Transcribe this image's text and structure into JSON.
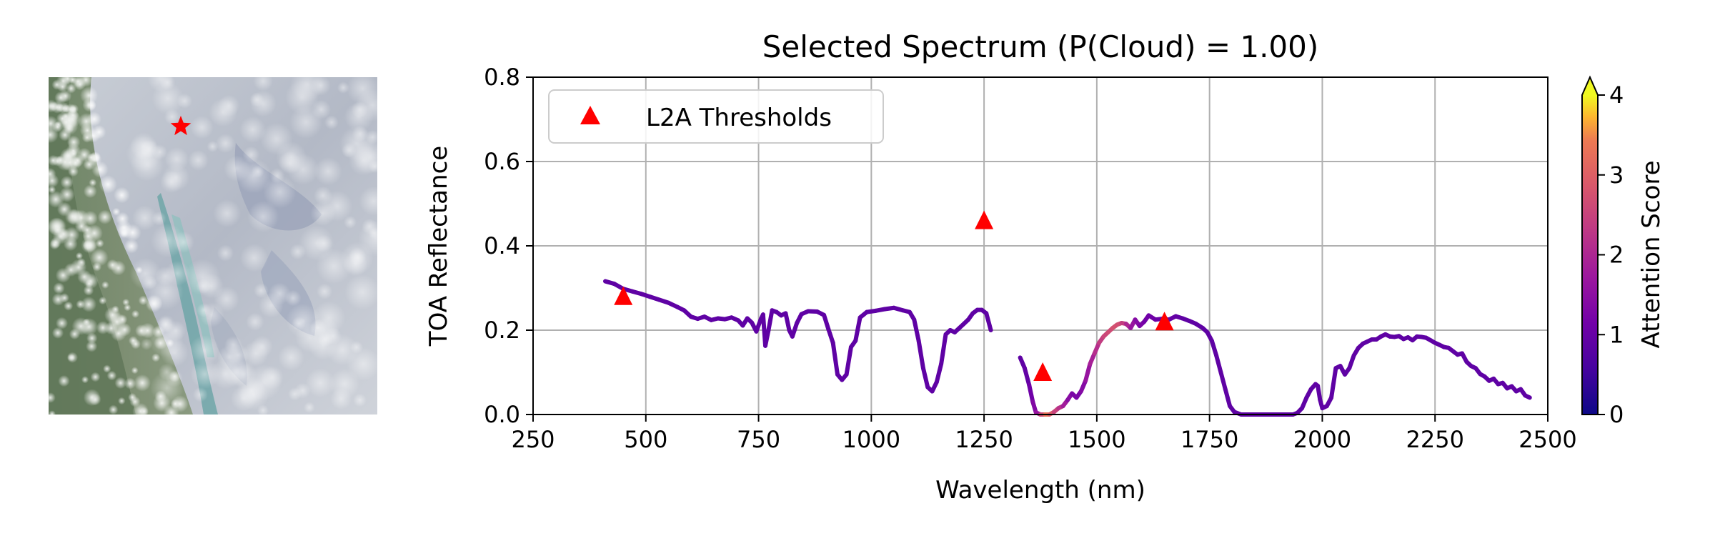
{
  "figure": {
    "thumbnail": {
      "marker": "red-star-marker",
      "marker_color": "#ff0000"
    }
  },
  "chart_data": {
    "type": "line",
    "title": "Selected Spectrum (P(Cloud) = 1.00)",
    "xlabel": "Wavelength (nm)",
    "ylabel": "TOA Reflectance",
    "xlim": [
      250,
      2500
    ],
    "ylim": [
      0,
      0.8
    ],
    "xticks": [
      250,
      500,
      750,
      1000,
      1250,
      1500,
      1750,
      2000,
      2250,
      2500
    ],
    "yticks": [
      0.0,
      0.2,
      0.4,
      0.6,
      0.8
    ],
    "xtick_labels": [
      "250",
      "500",
      "750",
      "1000",
      "1250",
      "1500",
      "1750",
      "2000",
      "2250",
      "2500"
    ],
    "ytick_labels": [
      "0.0",
      "0.2",
      "0.4",
      "0.6",
      "0.8"
    ],
    "grid": true,
    "legend": {
      "position": "top-left",
      "entries": [
        "L2A Thresholds"
      ]
    },
    "colorbar": {
      "label": "Attention Score",
      "range": [
        0,
        4
      ],
      "ticks": [
        "0",
        "1",
        "2",
        "3",
        "4"
      ],
      "extend": "max",
      "colormap": "plasma"
    },
    "series": [
      {
        "kind": "spectrum",
        "segments": [
          [
            [
              410,
              0.316,
              0.9
            ],
            [
              430,
              0.31,
              0.9
            ],
            [
              450,
              0.298,
              0.9
            ],
            [
              470,
              0.292,
              0.9
            ],
            [
              490,
              0.286,
              0.9
            ],
            [
              510,
              0.279,
              0.9
            ],
            [
              530,
              0.272,
              0.9
            ],
            [
              550,
              0.265,
              0.9
            ],
            [
              570,
              0.255,
              0.9
            ],
            [
              585,
              0.247,
              0.9
            ],
            [
              600,
              0.232,
              0.9
            ],
            [
              615,
              0.227,
              0.9
            ],
            [
              630,
              0.232,
              0.9
            ],
            [
              645,
              0.224,
              0.9
            ],
            [
              660,
              0.228,
              0.9
            ],
            [
              675,
              0.226,
              0.9
            ],
            [
              690,
              0.23,
              0.9
            ],
            [
              705,
              0.223,
              0.9
            ],
            [
              715,
              0.211,
              0.9
            ],
            [
              725,
              0.228,
              0.9
            ],
            [
              735,
              0.218,
              0.9
            ],
            [
              745,
              0.197,
              0.9
            ],
            [
              755,
              0.226,
              0.9
            ],
            [
              760,
              0.237,
              0.9
            ],
            [
              765,
              0.163,
              0.9
            ],
            [
              772,
              0.2,
              0.9
            ],
            [
              780,
              0.247,
              0.9
            ],
            [
              790,
              0.243,
              0.9
            ],
            [
              800,
              0.235,
              0.9
            ],
            [
              810,
              0.24,
              0.9
            ],
            [
              818,
              0.2,
              0.9
            ],
            [
              825,
              0.185,
              0.9
            ],
            [
              835,
              0.217,
              0.9
            ],
            [
              845,
              0.238,
              0.9
            ],
            [
              860,
              0.245,
              0.9
            ],
            [
              880,
              0.244,
              0.9
            ],
            [
              895,
              0.236,
              0.9
            ],
            [
              905,
              0.202,
              0.9
            ],
            [
              915,
              0.17,
              0.9
            ],
            [
              925,
              0.095,
              0.9
            ],
            [
              935,
              0.082,
              0.9
            ],
            [
              945,
              0.095,
              0.9
            ],
            [
              955,
              0.16,
              0.9
            ],
            [
              965,
              0.175,
              0.9
            ],
            [
              975,
              0.23,
              0.9
            ],
            [
              990,
              0.243,
              0.9
            ],
            [
              1010,
              0.246,
              0.9
            ],
            [
              1030,
              0.25,
              0.9
            ],
            [
              1050,
              0.253,
              0.9
            ],
            [
              1070,
              0.247,
              0.9
            ],
            [
              1085,
              0.243,
              0.9
            ],
            [
              1095,
              0.225,
              0.9
            ],
            [
              1105,
              0.175,
              0.9
            ],
            [
              1115,
              0.11,
              0.9
            ],
            [
              1125,
              0.065,
              0.9
            ],
            [
              1135,
              0.055,
              0.9
            ],
            [
              1145,
              0.077,
              0.9
            ],
            [
              1155,
              0.12,
              0.9
            ],
            [
              1165,
              0.19,
              0.9
            ],
            [
              1175,
              0.2,
              0.9
            ],
            [
              1185,
              0.195,
              0.9
            ],
            [
              1195,
              0.205,
              0.9
            ],
            [
              1205,
              0.215,
              0.9
            ],
            [
              1215,
              0.225,
              0.9
            ],
            [
              1225,
              0.24,
              0.9
            ],
            [
              1235,
              0.248,
              0.9
            ],
            [
              1245,
              0.248,
              0.9
            ],
            [
              1255,
              0.24,
              0.9
            ],
            [
              1265,
              0.2,
              0.9
            ]
          ],
          [
            [
              1330,
              0.135,
              0.9
            ],
            [
              1340,
              0.11,
              0.9
            ],
            [
              1350,
              0.07,
              1.0
            ],
            [
              1358,
              0.03,
              1.2
            ],
            [
              1365,
              0.005,
              1.5
            ],
            [
              1375,
              0.0,
              1.8
            ],
            [
              1385,
              0.0,
              3.5
            ],
            [
              1395,
              0.0,
              3.2
            ],
            [
              1405,
              0.006,
              2.6
            ],
            [
              1415,
              0.015,
              2.4
            ],
            [
              1425,
              0.02,
              2.0
            ],
            [
              1435,
              0.034,
              1.6
            ],
            [
              1445,
              0.05,
              1.3
            ],
            [
              1455,
              0.04,
              1.2
            ],
            [
              1465,
              0.055,
              1.3
            ],
            [
              1475,
              0.08,
              1.5
            ],
            [
              1485,
              0.12,
              1.8
            ],
            [
              1495,
              0.145,
              2.0
            ],
            [
              1505,
              0.17,
              2.3
            ],
            [
              1515,
              0.185,
              2.5
            ],
            [
              1525,
              0.195,
              2.6
            ],
            [
              1535,
              0.205,
              2.7
            ],
            [
              1545,
              0.213,
              2.8
            ],
            [
              1555,
              0.217,
              2.6
            ],
            [
              1565,
              0.215,
              2.2
            ],
            [
              1575,
              0.205,
              1.8
            ],
            [
              1585,
              0.225,
              1.5
            ],
            [
              1595,
              0.21,
              1.3
            ],
            [
              1605,
              0.22,
              1.2
            ],
            [
              1615,
              0.235,
              1.1
            ],
            [
              1630,
              0.225,
              1.1
            ],
            [
              1645,
              0.227,
              1.0
            ],
            [
              1660,
              0.225,
              1.0
            ],
            [
              1675,
              0.233,
              1.0
            ],
            [
              1690,
              0.228,
              0.9
            ],
            [
              1705,
              0.222,
              0.9
            ],
            [
              1720,
              0.215,
              0.9
            ],
            [
              1735,
              0.205,
              0.9
            ],
            [
              1745,
              0.195,
              0.9
            ],
            [
              1755,
              0.175,
              0.9
            ],
            [
              1765,
              0.14,
              0.9
            ],
            [
              1775,
              0.1,
              0.9
            ],
            [
              1785,
              0.06,
              0.9
            ],
            [
              1795,
              0.02,
              0.9
            ],
            [
              1805,
              0.006,
              0.9
            ],
            [
              1820,
              0.0,
              0.9
            ],
            [
              1840,
              0.0,
              0.9
            ],
            [
              1860,
              0.0,
              0.9
            ],
            [
              1880,
              0.0,
              0.9
            ],
            [
              1900,
              0.0,
              0.9
            ],
            [
              1920,
              0.0,
              0.9
            ],
            [
              1935,
              0.0,
              0.9
            ],
            [
              1945,
              0.004,
              0.9
            ],
            [
              1955,
              0.015,
              0.9
            ],
            [
              1965,
              0.04,
              0.9
            ],
            [
              1975,
              0.06,
              0.9
            ],
            [
              1985,
              0.072,
              0.9
            ],
            [
              1990,
              0.068,
              0.9
            ],
            [
              1995,
              0.035,
              0.9
            ],
            [
              2000,
              0.015,
              0.9
            ],
            [
              2010,
              0.02,
              0.9
            ],
            [
              2020,
              0.04,
              0.9
            ],
            [
              2030,
              0.11,
              0.9
            ],
            [
              2040,
              0.115,
              0.9
            ],
            [
              2050,
              0.095,
              0.9
            ],
            [
              2060,
              0.11,
              0.9
            ],
            [
              2070,
              0.14,
              0.9
            ],
            [
              2080,
              0.158,
              0.9
            ],
            [
              2090,
              0.168,
              0.9
            ],
            [
              2100,
              0.173,
              0.9
            ],
            [
              2110,
              0.178,
              0.9
            ],
            [
              2120,
              0.178,
              0.9
            ],
            [
              2130,
              0.185,
              0.9
            ],
            [
              2140,
              0.19,
              0.9
            ],
            [
              2150,
              0.185,
              0.9
            ],
            [
              2160,
              0.184,
              0.9
            ],
            [
              2170,
              0.186,
              0.9
            ],
            [
              2180,
              0.179,
              0.9
            ],
            [
              2190,
              0.183,
              0.9
            ],
            [
              2200,
              0.176,
              0.9
            ],
            [
              2210,
              0.185,
              0.9
            ],
            [
              2220,
              0.184,
              0.9
            ],
            [
              2230,
              0.182,
              0.9
            ],
            [
              2240,
              0.176,
              0.9
            ],
            [
              2250,
              0.17,
              0.9
            ],
            [
              2260,
              0.165,
              0.9
            ],
            [
              2270,
              0.16,
              0.9
            ],
            [
              2280,
              0.158,
              0.9
            ],
            [
              2290,
              0.15,
              0.9
            ],
            [
              2300,
              0.142,
              0.9
            ],
            [
              2310,
              0.145,
              0.9
            ],
            [
              2320,
              0.125,
              0.9
            ],
            [
              2330,
              0.115,
              0.9
            ],
            [
              2340,
              0.11,
              0.9
            ],
            [
              2350,
              0.096,
              0.9
            ],
            [
              2360,
              0.09,
              0.9
            ],
            [
              2370,
              0.08,
              0.9
            ],
            [
              2380,
              0.085,
              0.9
            ],
            [
              2390,
              0.072,
              0.9
            ],
            [
              2400,
              0.075,
              0.9
            ],
            [
              2410,
              0.062,
              0.9
            ],
            [
              2420,
              0.067,
              0.9
            ],
            [
              2430,
              0.055,
              0.9
            ],
            [
              2440,
              0.06,
              0.9
            ],
            [
              2450,
              0.045,
              0.9
            ],
            [
              2460,
              0.04,
              0.9
            ]
          ]
        ]
      },
      {
        "name": "L2A Thresholds",
        "kind": "markers",
        "marker": "triangle",
        "color": "#ff0000",
        "points": [
          [
            450,
            0.28
          ],
          [
            1250,
            0.46
          ],
          [
            1380,
            0.1
          ],
          [
            1650,
            0.22
          ]
        ]
      }
    ]
  }
}
